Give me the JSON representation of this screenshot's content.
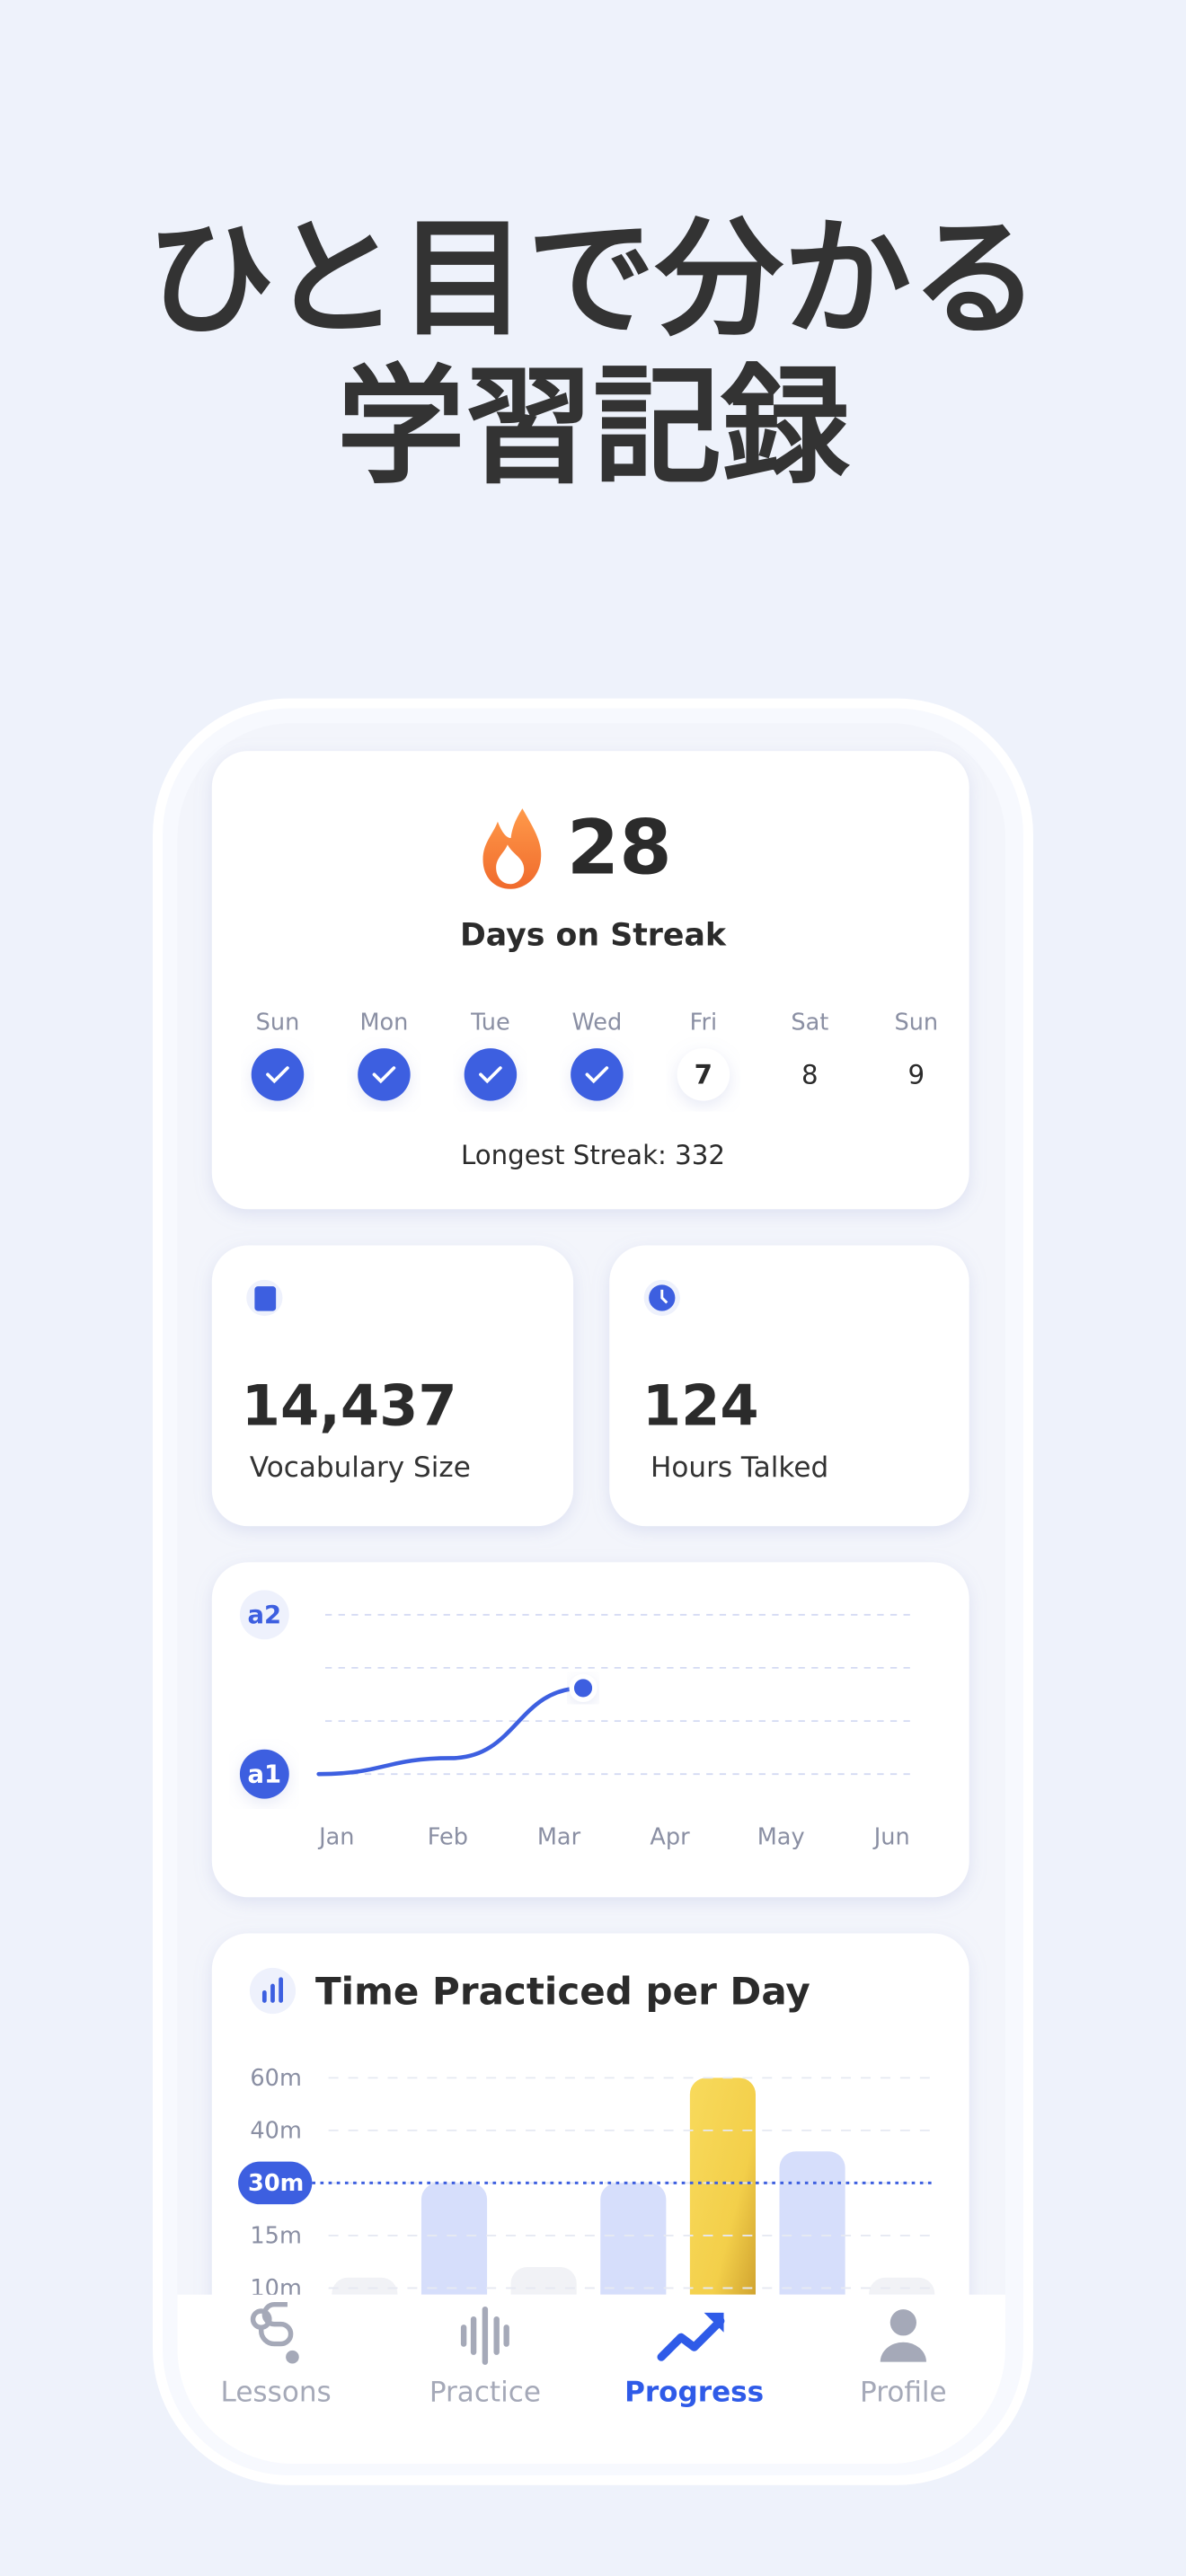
{
  "headline": [
    "ひと目で分かる",
    "学習記録"
  ],
  "streak": {
    "count": 28,
    "label": "Days on Streak",
    "days": [
      {
        "name": "Sun",
        "checked": true
      },
      {
        "name": "Mon",
        "checked": true
      },
      {
        "name": "Tue",
        "checked": true
      },
      {
        "name": "Wed",
        "checked": true
      },
      {
        "name": "Fri",
        "date": 7,
        "today": true
      },
      {
        "name": "Sat",
        "date": 8
      },
      {
        "name": "Sun",
        "date": 9
      }
    ],
    "longest": "Longest Streak: 332"
  },
  "stats": [
    {
      "value": "14,437",
      "label": "Vocabulary Size"
    },
    {
      "value": "124",
      "label": "Hours Talked"
    }
  ],
  "level_chart": {
    "type": "line",
    "categories": [
      "Jan",
      "Feb",
      "Mar",
      "Apr",
      "May",
      "Jun"
    ],
    "values": [
      1,
      1.1,
      1.54,
      null,
      null,
      null
    ],
    "color": "#3d5fe0",
    "ylim": [
      1,
      2
    ],
    "yticks": [
      {
        "value": 2,
        "label": "a2"
      },
      {
        "value": 1,
        "label": "a1"
      }
    ],
    "grid_lines": [
      1.333,
      1.667
    ]
  },
  "practice_chart": {
    "type": "bar",
    "title": "Time Practiced per Day",
    "values": [
      11,
      30,
      12,
      30,
      60,
      36,
      11
    ],
    "colors": [
      "#f1f2f6",
      "#d6defb",
      "#f1f2f6",
      "#d6defb",
      "gold",
      "#d6defb",
      "#f1f2f6"
    ],
    "yticks": [
      {
        "value": 60,
        "label": "60m"
      },
      {
        "value": 40,
        "label": "40m"
      },
      {
        "value": 30,
        "label": "30m"
      },
      {
        "value": 15,
        "label": "15m"
      },
      {
        "value": 10,
        "label": "10m"
      }
    ],
    "reference_line": 30,
    "grid": true
  },
  "nav": [
    {
      "label": "Lessons"
    },
    {
      "label": "Practice"
    },
    {
      "label": "Progress",
      "active": true
    },
    {
      "label": "Profile"
    }
  ]
}
